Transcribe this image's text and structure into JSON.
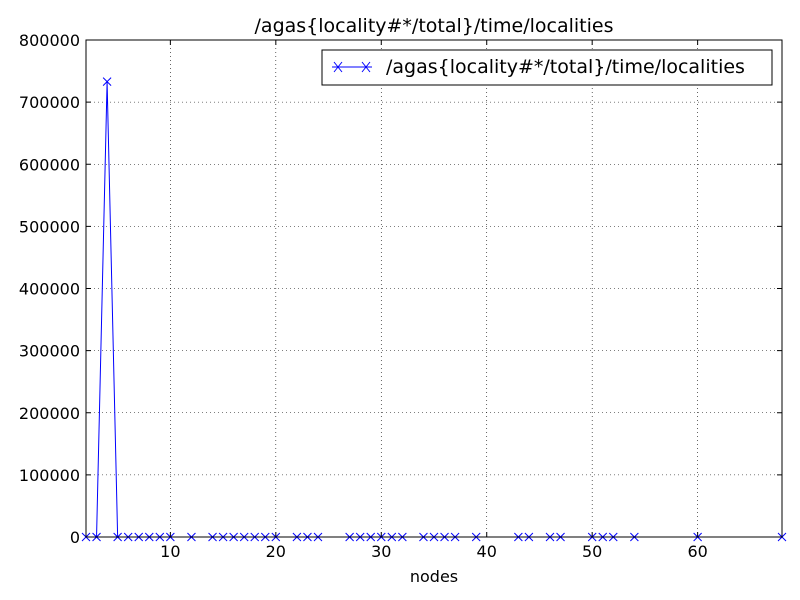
{
  "chart_data": {
    "type": "line",
    "title": "/agas{locality#*/total}/time/localities",
    "xlabel": "nodes",
    "ylabel": "",
    "xlim": [
      2,
      68
    ],
    "ylim": [
      0,
      800000
    ],
    "xticks": [
      10,
      20,
      30,
      40,
      50,
      60
    ],
    "yticks": [
      0,
      100000,
      200000,
      300000,
      400000,
      500000,
      600000,
      700000,
      800000
    ],
    "xtick_labels": [
      "10",
      "20",
      "30",
      "40",
      "50",
      "60"
    ],
    "ytick_labels": [
      "0",
      "100000",
      "200000",
      "300000",
      "400000",
      "500000",
      "600000",
      "700000",
      "800000"
    ],
    "grid": true,
    "legend_position": "top-right",
    "series": [
      {
        "name": "/agas{locality#*/total}/time/localities",
        "color": "#0000ff",
        "marker": "x",
        "x": [
          2,
          3,
          4,
          5,
          6,
          7,
          8,
          9,
          10,
          12,
          14,
          15,
          16,
          17,
          18,
          19,
          20,
          22,
          23,
          24,
          27,
          28,
          29,
          30,
          31,
          32,
          34,
          35,
          36,
          37,
          39,
          43,
          44,
          46,
          47,
          50,
          51,
          52,
          54,
          60,
          68
        ],
        "y": [
          0,
          0,
          733000,
          0,
          0,
          0,
          0,
          0,
          0,
          0,
          0,
          0,
          0,
          0,
          0,
          0,
          0,
          0,
          0,
          0,
          0,
          0,
          0,
          0,
          0,
          0,
          0,
          0,
          0,
          0,
          0,
          0,
          0,
          0,
          0,
          0,
          0,
          0,
          0,
          0,
          0
        ]
      }
    ]
  }
}
